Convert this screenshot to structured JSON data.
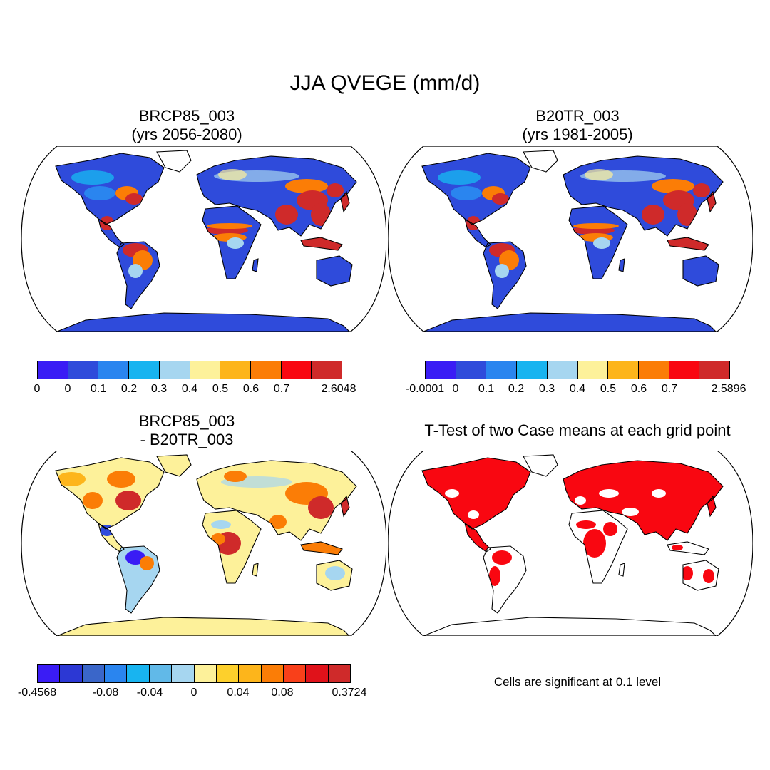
{
  "title": "JJA QVEGE (mm/d)",
  "panels": [
    {
      "line1": "BRCP85_003",
      "line2": "(yrs 2056-2080)"
    },
    {
      "line1": "B20TR_003",
      "line2": "(yrs 1981-2005)"
    },
    {
      "line1": "BRCP85_003",
      "line2": "- B20TR_003"
    },
    {
      "line1": "T-Test of two Case means at each grid point"
    }
  ],
  "colorbars": [
    {
      "colors": [
        "#3a1cf5",
        "#2f4bdb",
        "#2a85ef",
        "#18b4f0",
        "#a6d6f0",
        "#fdf19a",
        "#fdb51b",
        "#fb7d06",
        "#f90711",
        "#cf2a2a"
      ],
      "labels": [
        "0",
        "0",
        "0.1",
        "0.2",
        "0.3",
        "0.4",
        "0.5",
        "0.6",
        "0.7",
        "2.6048"
      ]
    },
    {
      "colors": [
        "#3a1cf5",
        "#2f4bdb",
        "#2a85ef",
        "#18b4f0",
        "#a6d6f0",
        "#fdf19a",
        "#fdb51b",
        "#fb7d06",
        "#f90711",
        "#cf2a2a"
      ],
      "labels": [
        "-0.0001",
        "0",
        "0.1",
        "0.2",
        "0.3",
        "0.4",
        "0.5",
        "0.6",
        "0.7",
        "2.5896"
      ]
    },
    {
      "colors": [
        "#3a1cf5",
        "#2c38d4",
        "#3a66c9",
        "#2a85ef",
        "#18b4f0",
        "#61b9e8",
        "#a6d6f0",
        "#fdf19a",
        "#fdd02c",
        "#fdb51b",
        "#fb7d06",
        "#f9401a",
        "#e0121a",
        "#cf2a2a"
      ],
      "labels": [
        "-0.4568",
        "-0.08",
        "-0.04",
        "0",
        "0.04",
        "0.08",
        "0.3724"
      ]
    }
  ],
  "significance_note": "Cells are significant at 0.1 level"
}
